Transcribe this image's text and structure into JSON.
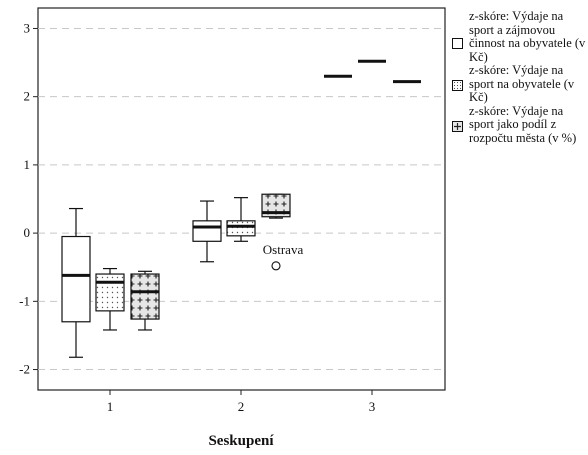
{
  "chart_data": {
    "type": "boxplot",
    "xlabel": "Seskupení",
    "ylabel": "",
    "categories": [
      "1",
      "2",
      "3"
    ],
    "ylim": [
      -2.3,
      3.3
    ],
    "yticks": [
      -2,
      -1,
      0,
      1,
      2,
      3
    ],
    "grid": "horizontal dashed",
    "legend_position": "right",
    "series": [
      {
        "name": "z-skóre: Výdaje na sport a zájmovou činnost na obyvatele (v Kč)",
        "fill": "plain",
        "boxes": [
          {
            "category": "1",
            "min": -1.82,
            "q1": -1.3,
            "median": -0.62,
            "q3": -0.05,
            "max": 0.36
          },
          {
            "category": "2",
            "min": -0.42,
            "q1": -0.12,
            "median": 0.09,
            "q3": 0.18,
            "max": 0.47
          },
          {
            "category": "3",
            "min": 2.3,
            "q1": 2.3,
            "median": 2.3,
            "q3": 2.3,
            "max": 2.3
          }
        ]
      },
      {
        "name": "z-skóre: Výdaje na sport na obyvatele (v Kč)",
        "fill": "dotted",
        "boxes": [
          {
            "category": "1",
            "min": -1.42,
            "q1": -1.14,
            "median": -0.72,
            "q3": -0.6,
            "max": -0.52
          },
          {
            "category": "2",
            "min": -0.12,
            "q1": -0.04,
            "median": 0.1,
            "q3": 0.18,
            "max": 0.52
          },
          {
            "category": "3",
            "min": 2.52,
            "q1": 2.52,
            "median": 2.52,
            "q3": 2.52,
            "max": 2.52
          }
        ]
      },
      {
        "name": "z-skóre: Výdaje na sport jako podíl z rozpočtu města (v %)",
        "fill": "crosses",
        "boxes": [
          {
            "category": "1",
            "min": -1.42,
            "q1": -1.26,
            "median": -0.86,
            "q3": -0.6,
            "max": -0.56
          },
          {
            "category": "2",
            "min": 0.22,
            "q1": 0.24,
            "median": 0.3,
            "q3": 0.57,
            "max": 0.57
          },
          {
            "category": "3",
            "min": 2.22,
            "q1": 2.22,
            "median": 2.22,
            "q3": 2.22,
            "max": 2.22
          }
        ]
      }
    ],
    "outliers": [
      {
        "category": "2",
        "series_index": 2,
        "value": -0.48,
        "label": "Ostrava"
      }
    ]
  }
}
